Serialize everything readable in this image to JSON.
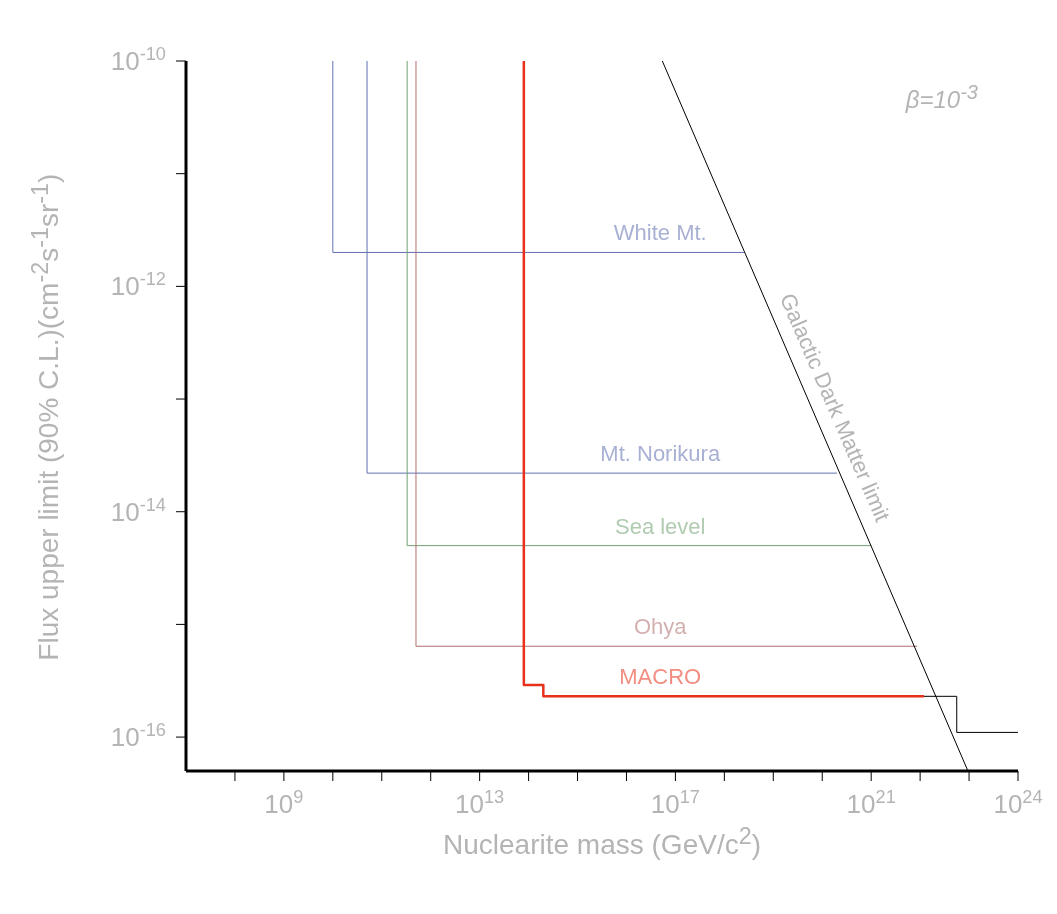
{
  "chart_data": {
    "type": "line",
    "xlabel": "Nuclearite mass (GeV/c$^{2}$)",
    "ylabel": "Flux upper limit (90% C.L.)(cm$^{-2}$s$^{-1}$sr$^{-1}$)",
    "annotations": [
      "β=10$^{-3}$"
    ],
    "log": "xy",
    "grid": false,
    "legend": false,
    "marker": "none",
    "line_style": "solid",
    "xlim": [
      10000000.0,
      1e+24
    ],
    "ylim": [
      5e-17,
      1e-10
    ],
    "xticks": [
      {
        "value": 100000000.0,
        "label": null
      },
      {
        "value": 1000000000.0,
        "label": "10$^{9}$"
      },
      {
        "value": 10000000000.0,
        "label": null
      },
      {
        "value": 100000000000.0,
        "label": null
      },
      {
        "value": 1000000000000.0,
        "label": null
      },
      {
        "value": 10000000000000.0,
        "label": "10$^{13}$"
      },
      {
        "value": 100000000000000.0,
        "label": null
      },
      {
        "value": 1000000000000000.0,
        "label": null
      },
      {
        "value": 1e+16,
        "label": null
      },
      {
        "value": 1e+17,
        "label": "10$^{17}$"
      },
      {
        "value": 1e+18,
        "label": null
      },
      {
        "value": 1e+19,
        "label": null
      },
      {
        "value": 1e+20,
        "label": null
      },
      {
        "value": 1e+21,
        "label": "10$^{21}$"
      },
      {
        "value": 1e+22,
        "label": null
      },
      {
        "value": 1e+23,
        "label": null
      },
      {
        "value": 1e+24,
        "label": "10$^{24}$"
      }
    ],
    "yticks": [
      {
        "value": 1e-16,
        "label": "10$^{-16}$"
      },
      {
        "value": 1e-15,
        "label": null
      },
      {
        "value": 1e-14,
        "label": "10$^{-14}$"
      },
      {
        "value": 1e-13,
        "label": null
      },
      {
        "value": 1e-12,
        "label": "10$^{-12}$"
      },
      {
        "value": 1e-11,
        "label": null
      },
      {
        "value": 1e-10,
        "label": "10$^{-10}$"
      }
    ],
    "series": [
      {
        "name": "White Mt.",
        "color": "#6070b0",
        "x": [
          10000000000.0,
          10000000000.0,
          2.6e+18
        ],
        "values": [
          1e-10,
          2e-12,
          2e-12
        ]
      },
      {
        "name": "Mt. Norikura",
        "color": "#6070b0",
        "x": [
          50000000000.0,
          50000000000.0,
          2e+20
        ],
        "values": [
          1e-10,
          2.2e-14,
          2.2e-14
        ]
      },
      {
        "name": "Sea level",
        "color": "#70a070",
        "x": [
          330000000000.0,
          330000000000.0,
          1e+21
        ],
        "values": [
          1e-10,
          5e-15,
          5e-15
        ]
      },
      {
        "name": "Ohya",
        "color": "#b07070",
        "x": [
          500000000000.0,
          500000000000.0,
          8.7e+21
        ],
        "values": [
          1e-10,
          6.4e-16,
          6.4e-16
        ]
      },
      {
        "name": "MACRO",
        "color": "#e8301a",
        "x": [
          80000000000000.0,
          80000000000000.0,
          200000000000000.0,
          200000000000000.0,
          1.2e+22
        ],
        "values": [
          1e-10,
          2.9e-16,
          2.9e-16,
          2.3e-16,
          2.3e-16
        ]
      },
      {
        "color": "#000000",
        "x": [
          1.2e+22,
          5.6e+22,
          5.6e+22,
          1e+24
        ],
        "values": [
          2.3e-16,
          2.3e-16,
          1.1e-16,
          1.1e-16
        ]
      },
      {
        "name": "Galactic Dark Matter limit",
        "color": "#000000",
        "x": [
          5.4e+16,
          9.5e+22
        ],
        "values": [
          1e-10,
          5e-17
        ]
      }
    ]
  }
}
